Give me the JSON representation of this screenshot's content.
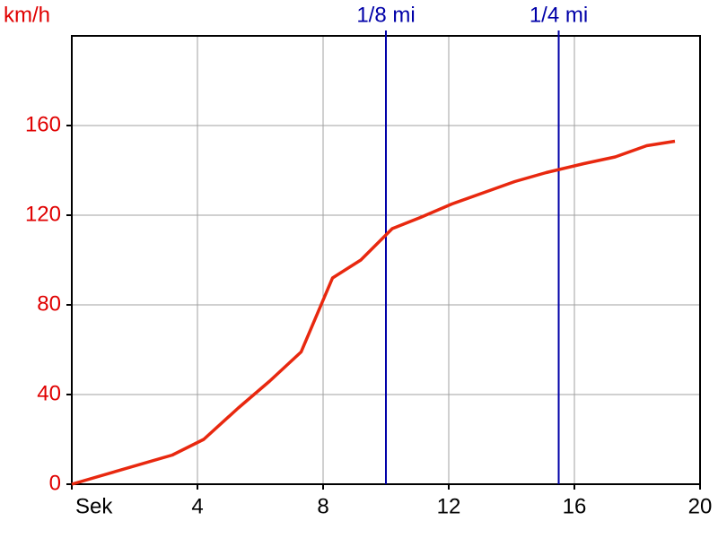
{
  "chart_data": {
    "type": "line",
    "y_label": "km/h",
    "x": [
      0,
      3.2,
      4.2,
      5.3,
      6.3,
      7.3,
      8.3,
      9.2,
      10.2,
      11.1,
      12.1,
      13.1,
      14.1,
      15.1,
      16.3,
      17.3,
      18.3,
      19.2
    ],
    "values": [
      0,
      13,
      20,
      34,
      46,
      59,
      92,
      100,
      114,
      119,
      125,
      130,
      135,
      139,
      143,
      146,
      151,
      153
    ],
    "color": "#e8280f",
    "xlim": [
      0,
      20
    ],
    "xticks": [
      {
        "value": 0,
        "label": "Sek"
      },
      4,
      8,
      12,
      16,
      20
    ],
    "ylim": [
      0,
      200
    ],
    "yticks": [
      0,
      40,
      80,
      120,
      160
    ],
    "y_tick_color": "#e00000",
    "grid": true,
    "vlines": [
      {
        "value": 10,
        "label": "1/8 mi"
      },
      {
        "value": 15.5,
        "label": "1/4 mi"
      }
    ],
    "vline_color": "#0000a8"
  }
}
